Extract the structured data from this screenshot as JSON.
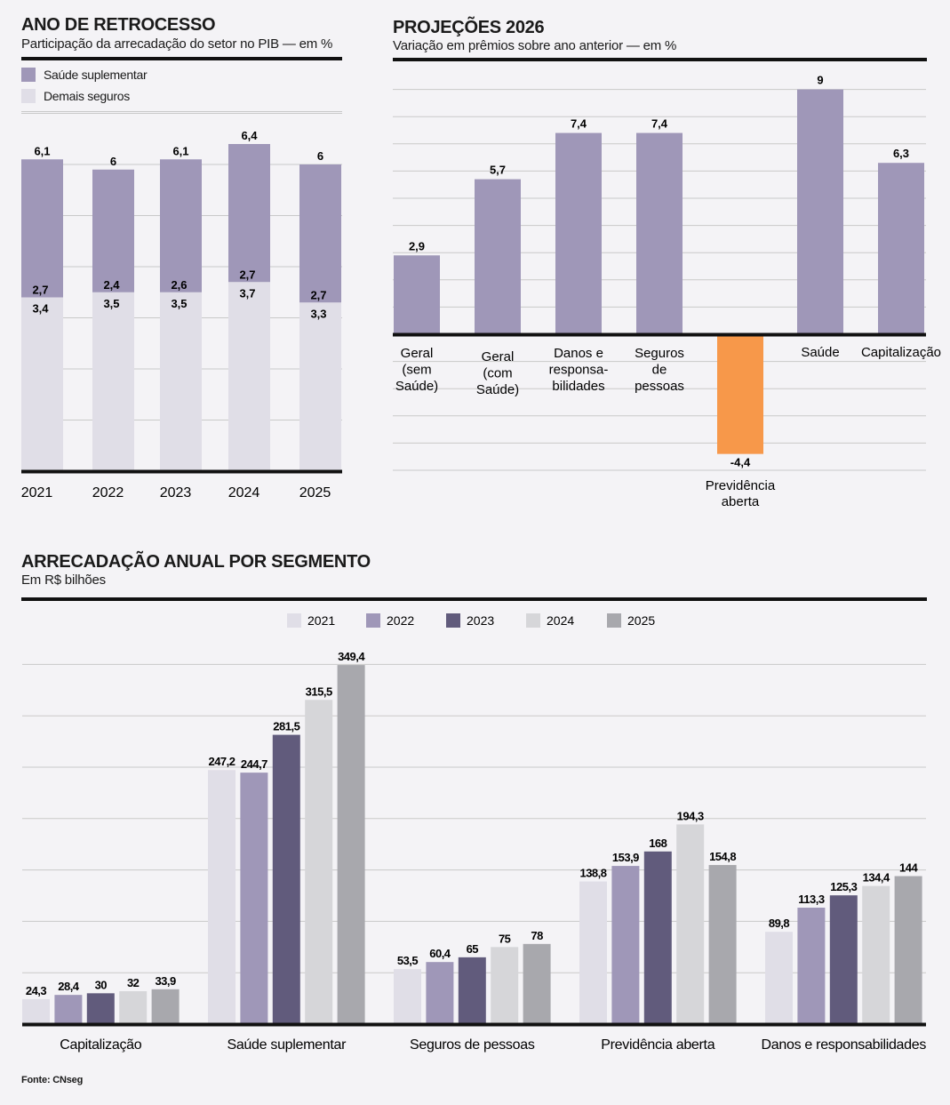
{
  "charts": {
    "retrocesso": {
      "title": "ANO DE RETROCESSO",
      "subtitle": "Participação da arrecadação do setor no PIB — em %",
      "legend": [
        {
          "label": "Saúde suplementar",
          "color": "#9f97b8"
        },
        {
          "label": "Demais seguros",
          "color": "#e0dee7"
        }
      ]
    },
    "projecoes": {
      "title": "PROJEÇÕES 2026",
      "subtitle": "Variação em prêmios sobre ano anterior — em %"
    },
    "arrecadacao": {
      "title": "ARRECADAÇÃO ANUAL POR SEGMENTO",
      "subtitle": "Em R$ bilhões"
    }
  },
  "source": "Fonte: CNseg",
  "chart_data": [
    {
      "type": "bar",
      "stacked": true,
      "title": "ANO DE RETROCESSO",
      "subtitle": "Participação da arrecadação do setor no PIB — em %",
      "categories": [
        "2021",
        "2022",
        "2023",
        "2024",
        "2025"
      ],
      "totals": [
        "6,1",
        "6",
        "6,1",
        "6,4",
        "6"
      ],
      "series": [
        {
          "name": "Demais seguros",
          "color": "#e0dee7",
          "values": [
            3.4,
            3.5,
            3.5,
            3.7,
            3.3
          ],
          "labels": [
            "3,4",
            "3,5",
            "3,5",
            "3,7",
            "3,3"
          ]
        },
        {
          "name": "Saúde suplementar",
          "color": "#9f97b8",
          "values": [
            2.7,
            2.4,
            2.6,
            2.7,
            2.7
          ],
          "labels": [
            "2,7",
            "2,4",
            "2,6",
            "2,7",
            "2,7"
          ]
        }
      ],
      "legend_position": "top-left",
      "grid": true
    },
    {
      "type": "bar",
      "title": "PROJEÇÕES 2026",
      "subtitle": "Variação em prêmios sobre ano anterior — em %",
      "categories": [
        "Geral (sem Saúde)",
        "Geral (com Saúde)",
        "Danos e responsa-bilidades",
        "Seguros de pessoas",
        "Previdência aberta",
        "Saúde",
        "Capitalização"
      ],
      "category_lines": [
        [
          "Geral",
          "(sem",
          "Saúde)"
        ],
        [
          "Geral",
          "(com",
          "Saúde)"
        ],
        [
          "Danos e",
          "responsa-",
          "bilidades"
        ],
        [
          "Seguros",
          "de",
          "pessoas"
        ],
        [
          "Previdência",
          "aberta"
        ],
        [
          "Saúde"
        ],
        [
          "Capitalização"
        ]
      ],
      "values": [
        2.9,
        5.7,
        7.4,
        7.4,
        -4.4,
        9,
        6.3
      ],
      "labels": [
        "2,9",
        "5,7",
        "7,4",
        "7,4",
        "-4,4",
        "9",
        "6,3"
      ],
      "colors": {
        "positive": "#9f97b8",
        "negative": "#f7984a"
      },
      "grid": true
    },
    {
      "type": "bar",
      "title": "ARRECADAÇÃO ANUAL POR SEGMENTO",
      "subtitle": "Em R$ bilhões",
      "categories": [
        "Capitalização",
        "Saúde suplementar",
        "Seguros de pessoas",
        "Previdência aberta",
        "Danos e responsabilidades"
      ],
      "series": [
        {
          "name": "2021",
          "color": "#e0dee7",
          "values": [
            24.3,
            247.2,
            53.5,
            138.8,
            89.8
          ],
          "labels": [
            "24,3",
            "247,2",
            "53,5",
            "138,8",
            "89,8"
          ]
        },
        {
          "name": "2022",
          "color": "#9f97b8",
          "values": [
            28.4,
            244.7,
            60.4,
            153.9,
            113.3
          ],
          "labels": [
            "28,4",
            "244,7",
            "60,4",
            "153,9",
            "113,3"
          ]
        },
        {
          "name": "2023",
          "color": "#615b7c",
          "values": [
            30,
            281.5,
            65,
            168,
            125.3
          ],
          "labels": [
            "30",
            "281,5",
            "65",
            "168",
            "125,3"
          ]
        },
        {
          "name": "2024",
          "color": "#d6d6d9",
          "values": [
            32,
            315.5,
            75,
            194.3,
            134.4
          ],
          "labels": [
            "32",
            "315,5",
            "75",
            "194,3",
            "134,4"
          ]
        },
        {
          "name": "2025",
          "color": "#a8a8ad",
          "values": [
            33.9,
            349.4,
            78,
            154.8,
            144
          ],
          "labels": [
            "33,9",
            "349,4",
            "78",
            "154,8",
            "144"
          ]
        }
      ],
      "legend_position": "top-center",
      "grid": true
    }
  ]
}
